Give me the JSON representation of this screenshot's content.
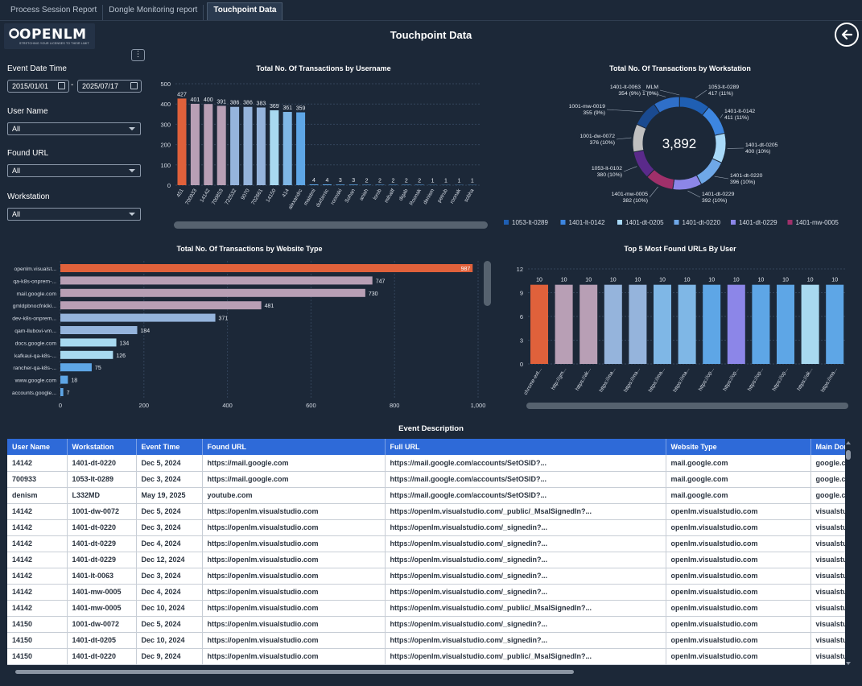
{
  "tabs": [
    {
      "label": "Process Session Report",
      "active": false
    },
    {
      "label": "Dongle Monitoring report",
      "active": false
    },
    {
      "label": "Touchpoint Data",
      "active": true
    }
  ],
  "logo": {
    "text": "OPENLM",
    "tagline": "STRETCHING YOUR LICENSES TO THEIR LIMIT"
  },
  "page_title": "Touchpoint Data",
  "back_icon": "arrow-left-circle-icon",
  "more_icon": "more-vertical-icon",
  "filters": {
    "event_date_label": "Event Date Time",
    "date_from": "2015/01/01",
    "date_to": "2025/07/17",
    "date_separator": "-",
    "user_name_label": "User Name",
    "user_name_value": "All",
    "found_url_label": "Found URL",
    "found_url_value": "All",
    "workstation_label": "Workstation",
    "workstation_value": "All"
  },
  "colors": {
    "background": "#1c2838",
    "orange": "#e0613b",
    "mauve": "#b89fb5",
    "blue1": "#95b4dc",
    "blue2": "#7fb7e6",
    "blue3": "#5ea6e6",
    "lightblue": "#a8d9f0",
    "purple": "#8c86e8",
    "header_blue": "#2e6ad8"
  },
  "chart_data": [
    {
      "type": "bar",
      "title": "Total No. Of Transactions by Username",
      "categories": [
        "451",
        "700933",
        "14142",
        "700853",
        "722532",
        "9070",
        "702661",
        "14150",
        "414",
        "alexandrc",
        "maistmi",
        "durbirnic",
        "roonaki",
        "Sohan",
        "anish",
        "lorob",
        "mihailf",
        "digab",
        "Roonak",
        "denism",
        "petrub",
        "roonak",
        "sobha"
      ],
      "values": [
        427,
        401,
        400,
        391,
        386,
        386,
        383,
        369,
        361,
        359,
        4,
        4,
        3,
        3,
        2,
        2,
        2,
        2,
        2,
        1,
        1,
        1,
        1
      ],
      "yticks": [
        0,
        100,
        200,
        300,
        400,
        500
      ],
      "ylim": [
        0,
        500
      ],
      "bar_colors": [
        "orange",
        "mauve",
        "mauve",
        "mauve",
        "blue1",
        "blue1",
        "blue1",
        "lightblue",
        "blue2",
        "blue3"
      ]
    },
    {
      "type": "pie",
      "title": "Total No. Of Transactions by Workstation",
      "center_total": "3,892",
      "slices": [
        {
          "name": "MLM",
          "value": 1,
          "percent": "0%",
          "color": "#2a4a8a"
        },
        {
          "name": "1053-lt-0289",
          "value": 417,
          "percent": "11%",
          "color": "#1f5fb3"
        },
        {
          "name": "1401-lt-0142",
          "value": 411,
          "percent": "11%",
          "color": "#3d86e0"
        },
        {
          "name": "1401-dt-0205",
          "value": 400,
          "percent": "10%",
          "color": "#a8d9f8"
        },
        {
          "name": "1401-dt-0220",
          "value": 396,
          "percent": "10%",
          "color": "#6fa8e8"
        },
        {
          "name": "1401-dt-0229",
          "value": 392,
          "percent": "10%",
          "color": "#8c86e8"
        },
        {
          "name": "1401-mw-0005",
          "value": 382,
          "percent": "10%",
          "color": "#a0306a"
        },
        {
          "name": "1053-lt-0102",
          "value": 380,
          "percent": "10%",
          "color": "#5a2a8a"
        },
        {
          "name": "1001-dw-0072",
          "value": 376,
          "percent": "10%",
          "color": "#c0c0c0"
        },
        {
          "name": "1001-mw-0019",
          "value": 355,
          "percent": "9%",
          "color": "#1a4a90"
        },
        {
          "name": "1401-lt-0063",
          "value": 354,
          "percent": "9%",
          "color": "#2f6fc8"
        }
      ],
      "legend": [
        {
          "name": "1053-lt-0289",
          "color": "#1f5fb3"
        },
        {
          "name": "1401-lt-0142",
          "color": "#3d86e0"
        },
        {
          "name": "1401-dt-0205",
          "color": "#a8d9f8"
        },
        {
          "name": "1401-dt-0220",
          "color": "#6fa8e8"
        },
        {
          "name": "1401-dt-0229",
          "color": "#8c86e8"
        },
        {
          "name": "1401-mw-0005",
          "color": "#a0306a"
        }
      ]
    },
    {
      "type": "bar",
      "orientation": "horizontal",
      "title": "Total No. Of Transactions by Website Type",
      "categories": [
        "openlm.visualst...",
        "qa-k8s-onprem-...",
        "mail.google.com",
        "gmldpbnocfnklki...",
        "dev-k8s-onprem...",
        "qam-llubovi-vm...",
        "docs.google.com",
        "kafkaui-qa-k8s-...",
        "rancher-qa-k8s-...",
        "www.google.com",
        "accounts.google..."
      ],
      "values": [
        987,
        747,
        730,
        481,
        371,
        184,
        134,
        126,
        75,
        18,
        7
      ],
      "xticks": [
        "0",
        "200",
        "400",
        "600",
        "800",
        "1,000"
      ],
      "xlim": [
        0,
        1000
      ],
      "bar_colors": [
        "orange",
        "mauve",
        "mauve",
        "mauve",
        "blue1",
        "blue1",
        "lightblue",
        "lightblue",
        "blue3",
        "blue3",
        "blue3"
      ]
    },
    {
      "type": "bar",
      "title": "Top 5 Most Found URLs By User",
      "categories": [
        "chrome-ext...",
        "http://gm...",
        "https://ak...",
        "https://ma...",
        "https://ma...",
        "https://ma...",
        "https://ma...",
        "https://op...",
        "https://op...",
        "https://op...",
        "https://op...",
        "https://ak...",
        "https://ma..."
      ],
      "values": [
        10,
        10,
        10,
        10,
        10,
        10,
        10,
        10,
        10,
        10,
        10,
        10,
        10
      ],
      "yticks": [
        0,
        3,
        6,
        9,
        12
      ],
      "ylim": [
        0,
        12
      ],
      "bar_colors": [
        "orange",
        "mauve",
        "mauve",
        "blue1",
        "blue1",
        "blue2",
        "blue2",
        "blue3",
        "purple",
        "blue3",
        "blue3",
        "lightblue",
        "blue3"
      ]
    }
  ],
  "table": {
    "title": "Event Description",
    "columns": [
      "User Name",
      "Workstation",
      "Event Time",
      "Found URL",
      "Full URL",
      "Website Type",
      "Main Dom"
    ],
    "rows": [
      [
        "14142",
        "1401-dt-0220",
        "Dec 5, 2024",
        "https://mail.google.com",
        "https://mail.google.com/accounts/SetOSID?...",
        "mail.google.com",
        "google.com"
      ],
      [
        "700933",
        "1053-lt-0289",
        "Dec 3, 2024",
        "https://mail.google.com",
        "https://mail.google.com/accounts/SetOSID?...",
        "mail.google.com",
        "google.com"
      ],
      [
        "denism",
        "L332MD",
        "May 19, 2025",
        "youtube.com",
        "https://mail.google.com/accounts/SetOSID?...",
        "mail.google.com",
        "google.com"
      ],
      [
        "14142",
        "1001-dw-0072",
        "Dec 5, 2024",
        "https://openlm.visualstudio.com",
        "https://openlm.visualstudio.com/_public/_MsalSignedIn?...",
        "openlm.visualstudio.com",
        "visualstudio"
      ],
      [
        "14142",
        "1401-dt-0220",
        "Dec 3, 2024",
        "https://openlm.visualstudio.com",
        "https://openlm.visualstudio.com/_signedin?...",
        "openlm.visualstudio.com",
        "visualstudio"
      ],
      [
        "14142",
        "1401-dt-0229",
        "Dec 4, 2024",
        "https://openlm.visualstudio.com",
        "https://openlm.visualstudio.com/_signedin?...",
        "openlm.visualstudio.com",
        "visualstudio"
      ],
      [
        "14142",
        "1401-dt-0229",
        "Dec 12, 2024",
        "https://openlm.visualstudio.com",
        "https://openlm.visualstudio.com/_signedin?...",
        "openlm.visualstudio.com",
        "visualstudio"
      ],
      [
        "14142",
        "1401-lt-0063",
        "Dec 3, 2024",
        "https://openlm.visualstudio.com",
        "https://openlm.visualstudio.com/_signedin?...",
        "openlm.visualstudio.com",
        "visualstudio"
      ],
      [
        "14142",
        "1401-mw-0005",
        "Dec 4, 2024",
        "https://openlm.visualstudio.com",
        "https://openlm.visualstudio.com/_signedin?...",
        "openlm.visualstudio.com",
        "visualstudio"
      ],
      [
        "14142",
        "1401-mw-0005",
        "Dec 10, 2024",
        "https://openlm.visualstudio.com",
        "https://openlm.visualstudio.com/_public/_MsalSignedIn?...",
        "openlm.visualstudio.com",
        "visualstudio"
      ],
      [
        "14150",
        "1001-dw-0072",
        "Dec 5, 2024",
        "https://openlm.visualstudio.com",
        "https://openlm.visualstudio.com/_signedin?...",
        "openlm.visualstudio.com",
        "visualstudio"
      ],
      [
        "14150",
        "1401-dt-0205",
        "Dec 10, 2024",
        "https://openlm.visualstudio.com",
        "https://openlm.visualstudio.com/_signedin?...",
        "openlm.visualstudio.com",
        "visualstudio"
      ],
      [
        "14150",
        "1401-dt-0220",
        "Dec 9, 2024",
        "https://openlm.visualstudio.com",
        "https://openlm.visualstudio.com/_public/_MsalSignedIn?...",
        "openlm.visualstudio.com",
        "visualstudio"
      ]
    ]
  }
}
